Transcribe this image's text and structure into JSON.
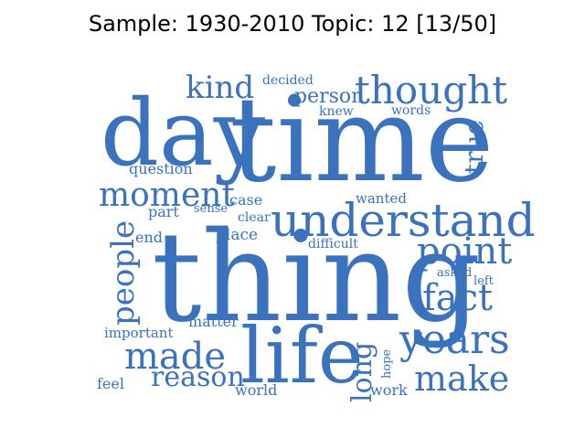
{
  "title": "Sample: 1930-2010 Topic: 12 [13/50]",
  "word_color": "#3a72be",
  "words": [
    "time",
    "thing",
    "day",
    "life",
    "understand",
    "thought",
    "moment",
    "people",
    "point",
    "years",
    "made",
    "fact",
    "make",
    "reason",
    "kind",
    "long",
    "true",
    "person",
    "question",
    "decided",
    "knew",
    "words",
    "case",
    "wanted",
    "part",
    "sense",
    "clear",
    "end",
    "place",
    "difficult",
    "asked",
    "left",
    "matter",
    "important",
    "hope",
    "feel",
    "world",
    "work"
  ]
}
